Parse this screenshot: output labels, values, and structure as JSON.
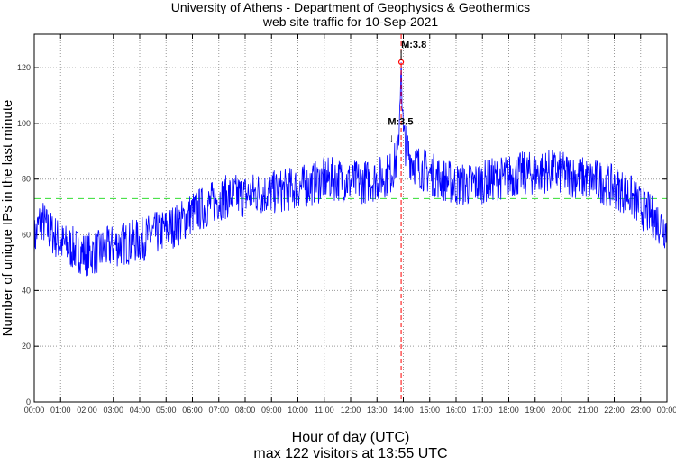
{
  "chart_data": {
    "type": "line",
    "title": "University of Athens - Department of Geophysics & Geothermics",
    "subtitle": "web site traffic for 10-Sep-2021",
    "xlabel": "Hour of day (UTC)",
    "footer": "max 122 visitors at 13:55 UTC",
    "ylabel": "Number of unique IPs in the last minute",
    "xlim": [
      0,
      24
    ],
    "ylim": [
      0,
      132
    ],
    "grid": true,
    "x_ticks": [
      "00:00",
      "01:00",
      "02:00",
      "03:00",
      "04:00",
      "05:00",
      "06:00",
      "07:00",
      "08:00",
      "09:00",
      "10:00",
      "11:00",
      "12:00",
      "13:00",
      "14:00",
      "15:00",
      "16:00",
      "17:00",
      "18:00",
      "19:00",
      "20:00",
      "21:00",
      "22:00",
      "23:00",
      "00:00"
    ],
    "y_ticks": [
      0,
      20,
      40,
      60,
      80,
      100,
      120
    ],
    "reference_line": {
      "y": 73,
      "color": "#33dd33"
    },
    "series": [
      {
        "name": "unique IPs",
        "color": "#0000ff",
        "x": [
          0,
          0.25,
          0.5,
          0.75,
          1,
          1.5,
          2,
          2.5,
          3,
          3.5,
          4,
          4.5,
          5,
          5.5,
          6,
          6.5,
          7,
          7.5,
          8,
          8.5,
          9,
          9.5,
          10,
          10.5,
          11,
          11.5,
          12,
          12.5,
          13,
          13.5,
          13.8,
          13.917,
          14,
          14.25,
          14.5,
          15,
          15.5,
          16,
          16.5,
          17,
          17.5,
          18,
          18.5,
          19,
          19.5,
          20,
          20.5,
          21,
          21.5,
          22,
          22.5,
          23,
          23.5,
          24
        ],
        "y": [
          58,
          66,
          62,
          60,
          57,
          55,
          53,
          54,
          56,
          57,
          58,
          60,
          62,
          64,
          68,
          70,
          73,
          74,
          74,
          75,
          75,
          76,
          77,
          78,
          80,
          80,
          79,
          79,
          80,
          82,
          88,
          122,
          95,
          88,
          85,
          82,
          80,
          78,
          78,
          79,
          80,
          81,
          82,
          82,
          83,
          82,
          81,
          80,
          79,
          77,
          75,
          70,
          66,
          62
        ]
      }
    ],
    "max_marker": {
      "x": 13.917,
      "y": 122,
      "label": "M:3.8",
      "color": "#ff0000"
    },
    "annotations": [
      {
        "x": 13.55,
        "y": 96,
        "label": "M:3.5"
      }
    ]
  }
}
